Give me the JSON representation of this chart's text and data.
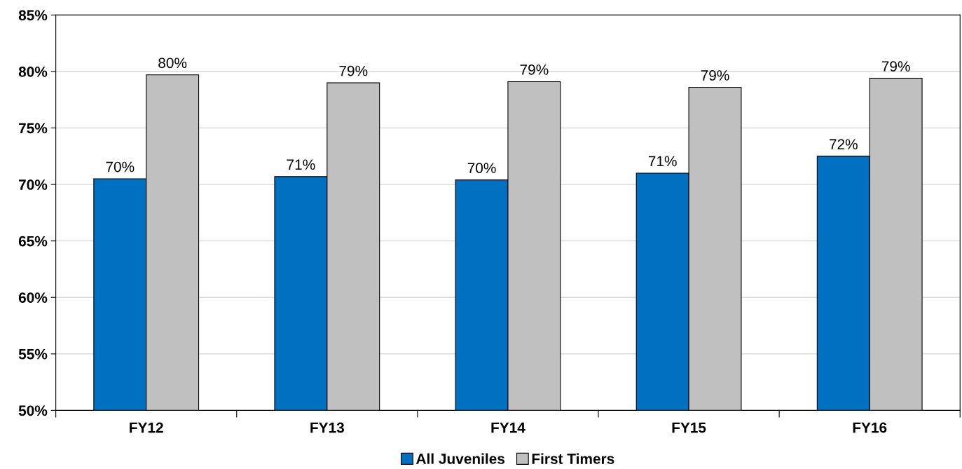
{
  "chart_data": {
    "type": "bar",
    "categories": [
      "FY12",
      "FY13",
      "FY14",
      "FY15",
      "FY16"
    ],
    "series": [
      {
        "name": "All Juveniles",
        "color": "#0070c0",
        "values": [
          70.5,
          70.7,
          70.4,
          71.0,
          72.5
        ],
        "value_labels": [
          "70%",
          "71%",
          "70%",
          "71%",
          "72%"
        ]
      },
      {
        "name": "First Timers",
        "color": "#c0c0c0",
        "values": [
          79.7,
          79.0,
          79.1,
          78.6,
          79.4
        ],
        "value_labels": [
          "80%",
          "79%",
          "79%",
          "79%",
          "79%"
        ]
      }
    ],
    "ylim": [
      50,
      85
    ],
    "yticks": [
      {
        "value": 50,
        "label": "50%"
      },
      {
        "value": 55,
        "label": "55%"
      },
      {
        "value": 60,
        "label": "60%"
      },
      {
        "value": 65,
        "label": "65%"
      },
      {
        "value": 70,
        "label": "70%"
      },
      {
        "value": 75,
        "label": "75%"
      },
      {
        "value": 80,
        "label": "80%"
      },
      {
        "value": 85,
        "label": "85%"
      }
    ],
    "grid": "y",
    "legend": "bottom"
  }
}
